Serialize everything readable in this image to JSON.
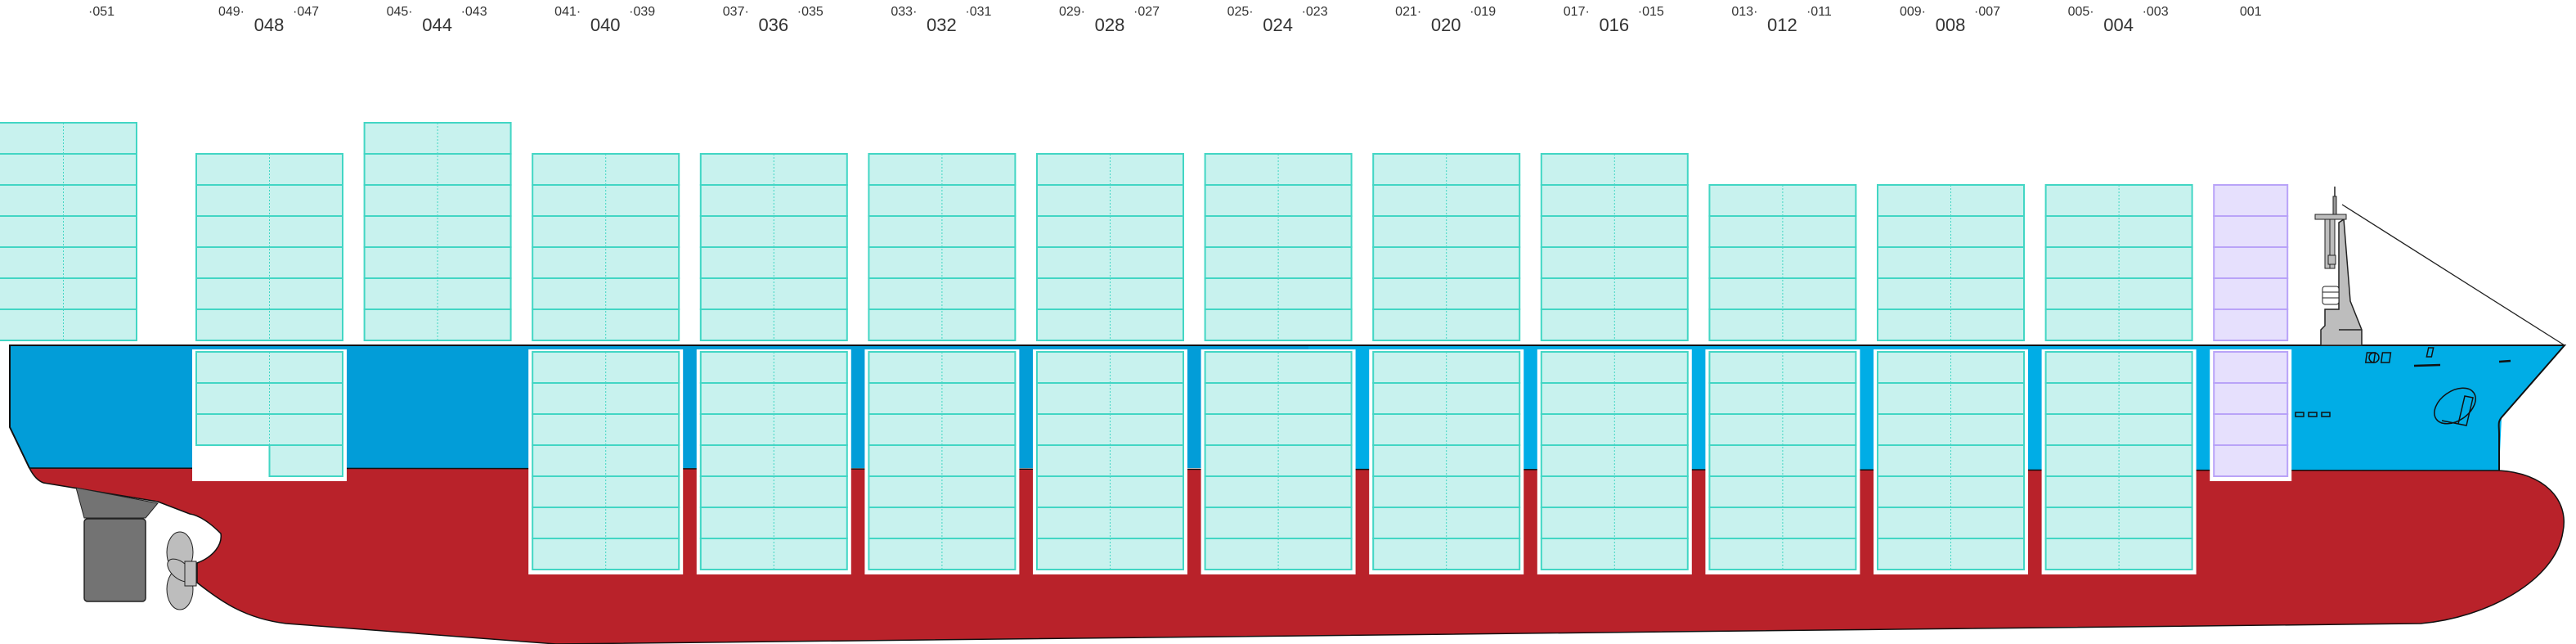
{
  "diagram": {
    "type": "container-ship-bay-plan",
    "colors": {
      "hull_upper_stern": "#029dd8",
      "hull_upper_bow": "#00ade6",
      "hull_lower": "#b9222a",
      "container_fill": "#c8f2ee",
      "container_stroke": "#42d6c4",
      "reefer_fill": "#e6e0fd",
      "reefer_stroke": "#b9a3f8",
      "machinery": "#737373",
      "superstructure": "#bdbdbd"
    },
    "bays": [
      {
        "label": "",
        "odd_left": "·051",
        "odd_right": "",
        "deck_tiers": 7,
        "hold_tiers": 0,
        "kind": "standard"
      },
      {
        "label": "048",
        "odd_left": "049·",
        "odd_right": "·047",
        "deck_tiers": 6,
        "hold_tiers": 3,
        "hold_extra_right": 1,
        "kind": "standard"
      },
      {
        "label": "044",
        "odd_left": "045·",
        "odd_right": "·043",
        "deck_tiers": 7,
        "hold_tiers": 0,
        "kind": "standard"
      },
      {
        "label": "040",
        "odd_left": "041·",
        "odd_right": "·039",
        "deck_tiers": 6,
        "hold_tiers": 7,
        "kind": "standard"
      },
      {
        "label": "036",
        "odd_left": "037·",
        "odd_right": "·035",
        "deck_tiers": 6,
        "hold_tiers": 7,
        "kind": "standard"
      },
      {
        "label": "032",
        "odd_left": "033·",
        "odd_right": "·031",
        "deck_tiers": 6,
        "hold_tiers": 7,
        "kind": "standard"
      },
      {
        "label": "028",
        "odd_left": "029·",
        "odd_right": "·027",
        "deck_tiers": 6,
        "hold_tiers": 7,
        "kind": "standard"
      },
      {
        "label": "024",
        "odd_left": "025·",
        "odd_right": "·023",
        "deck_tiers": 6,
        "hold_tiers": 7,
        "kind": "standard"
      },
      {
        "label": "020",
        "odd_left": "021·",
        "odd_right": "·019",
        "deck_tiers": 6,
        "hold_tiers": 7,
        "kind": "standard"
      },
      {
        "label": "016",
        "odd_left": "017·",
        "odd_right": "·015",
        "deck_tiers": 6,
        "hold_tiers": 7,
        "kind": "standard"
      },
      {
        "label": "012",
        "odd_left": "013·",
        "odd_right": "·011",
        "deck_tiers": 5,
        "hold_tiers": 7,
        "kind": "standard"
      },
      {
        "label": "008",
        "odd_left": "009·",
        "odd_right": "·007",
        "deck_tiers": 5,
        "hold_tiers": 7,
        "kind": "standard"
      },
      {
        "label": "004",
        "odd_left": "005·",
        "odd_right": "·003",
        "deck_tiers": 5,
        "hold_tiers": 7,
        "kind": "standard"
      },
      {
        "label": "",
        "odd_left": "001",
        "odd_right": "",
        "deck_tiers": 5,
        "hold_tiers": 4,
        "kind": "reefer"
      }
    ]
  }
}
